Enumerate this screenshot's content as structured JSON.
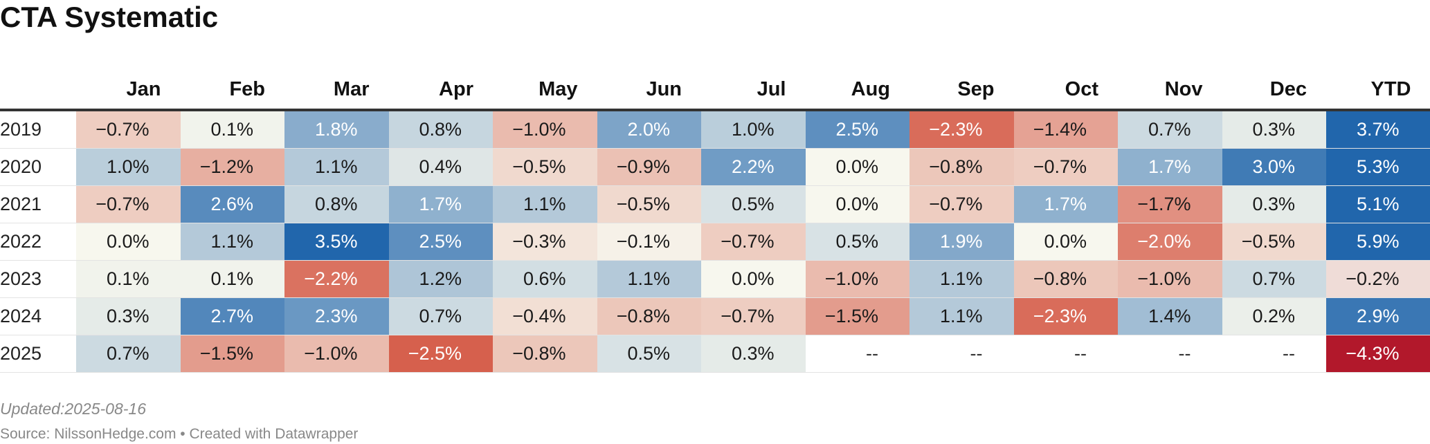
{
  "chart_data": {
    "type": "heatmap",
    "title": "CTA Systematic",
    "columns": [
      "Jan",
      "Feb",
      "Mar",
      "Apr",
      "May",
      "Jun",
      "Jul",
      "Aug",
      "Sep",
      "Oct",
      "Nov",
      "Dec",
      "YTD"
    ],
    "rows": [
      {
        "year": "2019",
        "values": [
          -0.7,
          0.1,
          1.8,
          0.8,
          -1.0,
          2.0,
          1.0,
          2.5,
          -2.3,
          -1.4,
          0.7,
          0.3,
          3.7
        ]
      },
      {
        "year": "2020",
        "values": [
          1.0,
          -1.2,
          1.1,
          0.4,
          -0.5,
          -0.9,
          2.2,
          0.0,
          -0.8,
          -0.7,
          1.7,
          3.0,
          5.3
        ]
      },
      {
        "year": "2021",
        "values": [
          -0.7,
          2.6,
          0.8,
          1.7,
          1.1,
          -0.5,
          0.5,
          0.0,
          -0.7,
          1.7,
          -1.7,
          0.3,
          5.1
        ]
      },
      {
        "year": "2022",
        "values": [
          0.0,
          1.1,
          3.5,
          2.5,
          -0.3,
          -0.1,
          -0.7,
          0.5,
          1.9,
          0.0,
          -2.0,
          -0.5,
          5.9
        ]
      },
      {
        "year": "2023",
        "values": [
          0.1,
          0.1,
          -2.2,
          1.2,
          0.6,
          1.1,
          0.0,
          -1.0,
          1.1,
          -0.8,
          -1.0,
          0.7,
          -0.2
        ]
      },
      {
        "year": "2024",
        "values": [
          0.3,
          2.7,
          2.3,
          0.7,
          -0.4,
          -0.8,
          -0.7,
          -1.5,
          1.1,
          -2.3,
          1.4,
          0.2,
          2.9
        ]
      },
      {
        "year": "2025",
        "values": [
          0.7,
          -1.5,
          -1.0,
          -2.5,
          -0.8,
          0.5,
          0.3,
          null,
          null,
          null,
          null,
          null,
          -4.3
        ]
      }
    ],
    "value_suffix": "%",
    "missing_label": "--"
  },
  "footer": {
    "updated": "Updated:2025-08-16",
    "source": "Source: NilssonHedge.com • Created with Datawrapper"
  },
  "colors": {
    "pos_strong": "#2166ac",
    "neutral": "#f7f7ee",
    "neg_strong": "#d6604d",
    "ytd_neg_strong": "#b2182b"
  }
}
